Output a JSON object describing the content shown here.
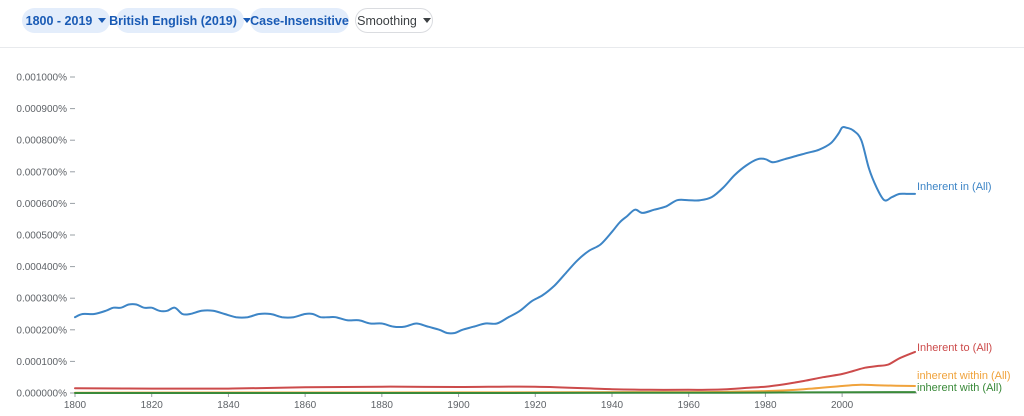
{
  "toolbar": {
    "range": "1800 - 2019",
    "corpus": "British English (2019)",
    "case": "Case-Insensitive",
    "smoothing": "Smoothing"
  },
  "chart_data": {
    "type": "line",
    "xlim": [
      1800,
      2019
    ],
    "ylim": [
      0,
      1e-05
    ],
    "x_ticks": [
      1800,
      1820,
      1840,
      1860,
      1880,
      1900,
      1920,
      1940,
      1960,
      1980,
      2000
    ],
    "y_ticks": [
      0,
      1e-06,
      2e-06,
      3e-06,
      4e-06,
      5e-06,
      6e-06,
      7e-06,
      8e-06,
      9e-06,
      1e-05
    ],
    "y_tick_labels": [
      "0.000000%",
      "0.000100%",
      "0.000200%",
      "0.000300%",
      "0.000400%",
      "0.000500%",
      "0.000600%",
      "0.000700%",
      "0.000800%",
      "0.000900%",
      "0.001000%"
    ],
    "grid": false,
    "legend": "right end of lines",
    "series": [
      {
        "name": "Inherent in (All)",
        "color": "#3d85c6",
        "x": [
          1800,
          1802,
          1805,
          1808,
          1810,
          1812,
          1814,
          1816,
          1818,
          1820,
          1822,
          1824,
          1826,
          1828,
          1830,
          1833,
          1836,
          1839,
          1842,
          1845,
          1848,
          1851,
          1854,
          1857,
          1860,
          1862,
          1864,
          1866,
          1868,
          1871,
          1874,
          1877,
          1880,
          1883,
          1886,
          1889,
          1892,
          1895,
          1897,
          1899,
          1901,
          1904,
          1907,
          1910,
          1913,
          1916,
          1919,
          1922,
          1925,
          1928,
          1931,
          1934,
          1937,
          1940,
          1942,
          1944,
          1946,
          1948,
          1951,
          1954,
          1957,
          1960,
          1963,
          1966,
          1969,
          1972,
          1975,
          1978,
          1980,
          1982,
          1985,
          1988,
          1991,
          1994,
          1997,
          1999,
          2000,
          2001,
          2003,
          2005,
          2007,
          2009,
          2011,
          2013,
          2015,
          2017,
          2019
        ],
        "y": [
          2.4e-06,
          2.5e-06,
          2.5e-06,
          2.6e-06,
          2.7e-06,
          2.7e-06,
          2.8e-06,
          2.8e-06,
          2.7e-06,
          2.7e-06,
          2.6e-06,
          2.6e-06,
          2.7e-06,
          2.5e-06,
          2.5e-06,
          2.6e-06,
          2.6e-06,
          2.5e-06,
          2.4e-06,
          2.4e-06,
          2.5e-06,
          2.5e-06,
          2.4e-06,
          2.4e-06,
          2.5e-06,
          2.5e-06,
          2.4e-06,
          2.4e-06,
          2.4e-06,
          2.3e-06,
          2.3e-06,
          2.2e-06,
          2.2e-06,
          2.1e-06,
          2.1e-06,
          2.2e-06,
          2.1e-06,
          2e-06,
          1.9e-06,
          1.9e-06,
          2e-06,
          2.1e-06,
          2.2e-06,
          2.2e-06,
          2.4e-06,
          2.6e-06,
          2.9e-06,
          3.1e-06,
          3.4e-06,
          3.8e-06,
          4.2e-06,
          4.5e-06,
          4.7e-06,
          5.1e-06,
          5.4e-06,
          5.6e-06,
          5.8e-06,
          5.7e-06,
          5.8e-06,
          5.9e-06,
          6.1e-06,
          6.1e-06,
          6.1e-06,
          6.2e-06,
          6.5e-06,
          6.9e-06,
          7.2e-06,
          7.4e-06,
          7.4e-06,
          7.3e-06,
          7.4e-06,
          7.5e-06,
          7.6e-06,
          7.7e-06,
          7.9e-06,
          8.2e-06,
          8.4e-06,
          8.4e-06,
          8.3e-06,
          8e-06,
          7.1e-06,
          6.5e-06,
          6.1e-06,
          6.2e-06,
          6.3e-06,
          6.3e-06,
          6.3e-06
        ]
      },
      {
        "name": "Inherent to (All)",
        "color": "#cc4b4b",
        "x": [
          1800,
          1820,
          1840,
          1860,
          1880,
          1900,
          1920,
          1940,
          1950,
          1960,
          1965,
          1970,
          1975,
          1980,
          1985,
          1990,
          1995,
          2000,
          2003,
          2006,
          2009,
          2012,
          2015,
          2019
        ],
        "y": [
          1.5e-07,
          1.4e-07,
          1.4e-07,
          1.8e-07,
          2e-07,
          1.9e-07,
          2e-07,
          1.2e-07,
          1e-07,
          1e-07,
          1e-07,
          1.2e-07,
          1.6e-07,
          2e-07,
          2.8e-07,
          3.8e-07,
          5e-07,
          6e-07,
          7e-07,
          8e-07,
          8.5e-07,
          9e-07,
          1.1e-06,
          1.3e-06
        ]
      },
      {
        "name": "inherent within (All)",
        "color": "#f0a33c",
        "x": [
          1800,
          1900,
          1960,
          1970,
          1980,
          1990,
          2000,
          2005,
          2010,
          2019
        ],
        "y": [
          1e-08,
          2e-08,
          3e-08,
          4e-08,
          6e-08,
          1.2e-07,
          2.2e-07,
          2.6e-07,
          2.4e-07,
          2.2e-07
        ]
      },
      {
        "name": "inherent with (All)",
        "color": "#3a8a3a",
        "x": [
          1800,
          1900,
          1970,
          1990,
          2019
        ],
        "y": [
          0.0,
          0.0,
          1e-08,
          2e-08,
          3e-08
        ]
      }
    ]
  }
}
